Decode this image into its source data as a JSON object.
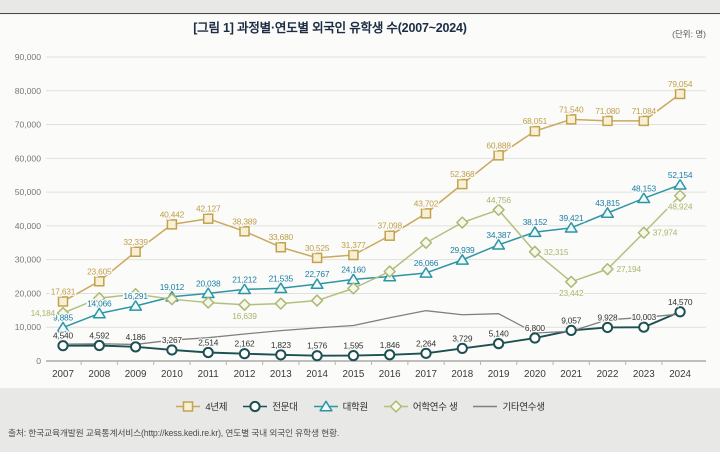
{
  "figure": {
    "title": "[그림 1]  과정별·연도별 외국인 유학생 수(2007~2024)",
    "unit_note": "(단위: 명)",
    "source": "출처: 한국교육개발원 교육통계서비스(http://kess.kedi.re.kr), 연도별 국내 외국인 유학생 현황."
  },
  "colors": {
    "panel_bg": "#fbfbf9",
    "strip_bg": "#e8e8e6",
    "grid": "#e0e0de",
    "baseline": "#9a9a98",
    "tick_text": "#777777",
    "year_text": "#3a3a3a"
  },
  "chart_data": {
    "type": "line",
    "title": "[그림 1] 과정별·연도별 외국인 유학생 수(2007~2024)",
    "unit": "명",
    "x": [
      "2007",
      "2008",
      "2009",
      "2010",
      "2011",
      "2012",
      "2013",
      "2014",
      "2015",
      "2016",
      "2017",
      "2018",
      "2019",
      "2020",
      "2021",
      "2022",
      "2023",
      "2024"
    ],
    "ylim": [
      0,
      90000
    ],
    "ytick_step": 10000,
    "yticks": [
      "0",
      "10,000",
      "20,000",
      "30,000",
      "40,000",
      "50,000",
      "60,000",
      "70,000",
      "80,000",
      "90,000"
    ],
    "grid": true,
    "legend_position": "bottom",
    "series": [
      {
        "name": "4년제",
        "marker": "square",
        "line_color": "#c9a95c",
        "marker_stroke": "#c2a24c",
        "marker_fill": "#f7f0d6",
        "label_color": "#bf9e4c",
        "values": [
          17631,
          23605,
          32339,
          40442,
          42127,
          38389,
          33680,
          30525,
          31377,
          37098,
          43702,
          52368,
          60888,
          68051,
          71540,
          71080,
          71084,
          79054
        ],
        "labels": [
          "17,631",
          "23,605",
          "32,339",
          "40,442",
          "42,127",
          "38,389",
          "33,680",
          "30,525",
          "31,377",
          "37,098",
          "43,702",
          "52,368",
          "60,888",
          "68,051",
          "71,540",
          "71,080",
          "71,084",
          "79,054"
        ]
      },
      {
        "name": "전문대",
        "marker": "circle",
        "line_color": "#1c5052",
        "marker_stroke": "#1c5052",
        "marker_fill": "#ffffff",
        "label_color": "#333333",
        "values": [
          4540,
          4592,
          4186,
          3267,
          2514,
          2162,
          1823,
          1576,
          1595,
          1846,
          2264,
          3729,
          5140,
          6800,
          9057,
          9928,
          10003,
          14570
        ],
        "labels": [
          "4,540",
          "4,592",
          "4,186",
          "3,267",
          "2,514",
          "2,162",
          "1,823",
          "1,576",
          "1,595",
          "1,846",
          "2,264",
          "3,729",
          "5,140",
          "6,800",
          "9,057",
          "9,928",
          "10,003",
          "14,570"
        ]
      },
      {
        "name": "대학원",
        "marker": "triangle",
        "line_color": "#2e95a5",
        "marker_stroke": "#2e95a5",
        "marker_fill": "#eefafa",
        "label_color": "#1b7ea6",
        "values": [
          9885,
          14066,
          16291,
          19012,
          20038,
          21212,
          21535,
          22767,
          24160,
          25000,
          26066,
          29939,
          34387,
          38152,
          39421,
          43815,
          48153,
          52154
        ],
        "labels": [
          "9,885",
          "14,066",
          "16,291",
          "19,012",
          "20,038",
          "21,212",
          "21,535",
          "22,767",
          "24,160",
          null,
          "26,066",
          "29,939",
          "34,387",
          "38,152",
          "39,421",
          "43,815",
          "48,153",
          "52,154"
        ]
      },
      {
        "name": "어학연수 생",
        "marker": "diamond",
        "line_color": "#b5bf7d",
        "marker_stroke": "#adb873",
        "marker_fill": "#f6f8ec",
        "label_color": "#aab56e",
        "values": [
          14184,
          18600,
          19800,
          18300,
          17300,
          16639,
          17000,
          17900,
          21500,
          26500,
          35000,
          41000,
          44756,
          32315,
          23442,
          27194,
          37974,
          48924
        ],
        "labels": [
          "14,184",
          null,
          null,
          null,
          null,
          "16,639",
          null,
          null,
          null,
          null,
          null,
          null,
          "44,756",
          "32,315",
          "23,442",
          "27,194",
          "37,974",
          "48,924"
        ],
        "label_positions": {
          "0": "left",
          "5": "below",
          "13": "right",
          "14": "below",
          "15": "right",
          "16": "right",
          "17": "below"
        }
      },
      {
        "name": "기타연수생",
        "marker": "none",
        "line_color": "#808080",
        "marker_stroke": "#808080",
        "marker_fill": "none",
        "label_color": "#808080",
        "values": [
          5000,
          5100,
          4900,
          6200,
          6900,
          8000,
          9000,
          9800,
          10500,
          12800,
          14900,
          13700,
          14000,
          8300,
          8800,
          12200,
          12900,
          13900
        ],
        "labels": [
          null,
          null,
          null,
          null,
          null,
          null,
          null,
          null,
          null,
          null,
          null,
          null,
          null,
          null,
          null,
          null,
          null,
          null
        ]
      }
    ]
  }
}
